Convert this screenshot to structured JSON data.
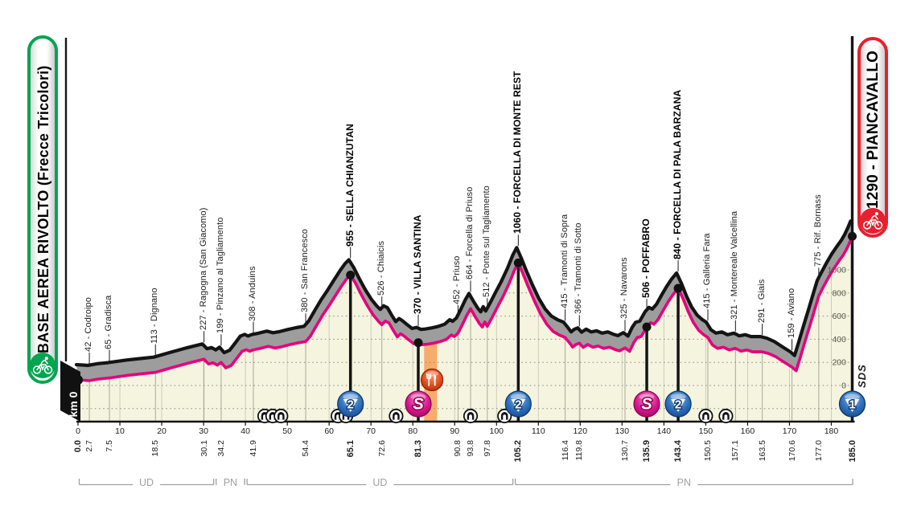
{
  "start": {
    "label": "BASE AEREA RIVOLTO (Frecce Tricolori)",
    "km0_label": "km 0"
  },
  "finish": {
    "label": "1290 - PIANCAVALLO"
  },
  "signature": "SDS",
  "colors": {
    "pink": "#e5007d",
    "line": "#141414",
    "shadow": "#9d9d9d",
    "area_fill": "#f4f4df",
    "feed_band": "#f6a55e",
    "green": "#00a550",
    "red": "#e6202e",
    "blue_cat": "#1f5fae",
    "magenta_sprint": "#d4007f",
    "orange_feed": "#e24f1e",
    "bracket": "#a0a0a0"
  },
  "chart_data": {
    "type": "area",
    "title": "Stage elevation profile",
    "x_unit": "km",
    "y_unit": "m",
    "xlim": [
      0,
      185
    ],
    "ylim": [
      -250,
      1350
    ],
    "axis": {
      "x_ticks": [
        0,
        10,
        20,
        30,
        40,
        50,
        60,
        70,
        80,
        90,
        100,
        110,
        120,
        130,
        140,
        150,
        160,
        170,
        180
      ],
      "y_tick_labels": [
        0,
        200,
        400,
        600,
        800,
        1000
      ],
      "y_gridlines": [
        -200,
        0,
        200,
        400,
        600,
        800,
        1000
      ]
    },
    "waypoints": [
      {
        "km": 2.7,
        "elev": 42,
        "label": "42 - Codroipo"
      },
      {
        "km": 7.5,
        "elev": 65,
        "label": "65 - Gradisca"
      },
      {
        "km": 18.5,
        "elev": 113,
        "label": "113 - Dignano"
      },
      {
        "km": 30.1,
        "elev": 227,
        "label": "227 - Ragogna (San Giacomo)"
      },
      {
        "km": 34.2,
        "elev": 199,
        "label": "199 - Pinzano al Tagliamento"
      },
      {
        "km": 41.9,
        "elev": 308,
        "label": "308 - Anduins"
      },
      {
        "km": 54.4,
        "elev": 380,
        "label": "380 - San Francesco"
      },
      {
        "km": 65.1,
        "elev": 955,
        "label": "955 - SELLA CHIANZUTAN",
        "bold": true,
        "marker": "cat2"
      },
      {
        "km": 72.6,
        "elev": 526,
        "label": "526 - Chiaicis"
      },
      {
        "km": 81.3,
        "elev": 370,
        "label": "370 - VILLA SANTINA",
        "bold": true,
        "marker": "sprint"
      },
      {
        "km": 90.8,
        "elev": 452,
        "label": "452 - Priuso"
      },
      {
        "km": 93.8,
        "elev": 664,
        "label": "664 - Forcella di Priuso"
      },
      {
        "km": 97.8,
        "elev": 512,
        "label": "512 - Ponte sul Tagliamento"
      },
      {
        "km": 105.2,
        "elev": 1060,
        "label": "1060 - FORCELLA DI MONTE REST",
        "bold": true,
        "marker": "cat2"
      },
      {
        "km": 116.4,
        "elev": 415,
        "label": "415 - Tramonti di Sopra"
      },
      {
        "km": 119.8,
        "elev": 366,
        "label": "366 - Tramonti di Sotto"
      },
      {
        "km": 130.7,
        "elev": 325,
        "label": "325 - Navarons"
      },
      {
        "km": 135.9,
        "elev": 506,
        "label": "506 - POFFABRO",
        "bold": true,
        "marker": "sprint"
      },
      {
        "km": 143.4,
        "elev": 840,
        "label": "840 - FORCELLA DI PALA BARZANA",
        "bold": true,
        "marker": "cat2"
      },
      {
        "km": 150.5,
        "elev": 415,
        "label": "415 - Galleria Fara"
      },
      {
        "km": 157.1,
        "elev": 321,
        "label": "321 - Montereale Valcellina"
      },
      {
        "km": 163.5,
        "elev": 291,
        "label": "291 - Giais"
      },
      {
        "km": 170.6,
        "elev": 159,
        "label": "159 - Aviano"
      },
      {
        "km": 177.0,
        "elev": 775,
        "label": "775 - Rif. Bornass"
      },
      {
        "km": 185.0,
        "elev": 1290,
        "label": "",
        "bold": true,
        "marker": "cat1",
        "no_callout": true
      }
    ],
    "km_labels": [
      {
        "v": "0.0",
        "bold": true
      },
      {
        "v": "2.7"
      },
      {
        "v": "7.5"
      },
      {
        "v": "18.5"
      },
      {
        "v": "30.1"
      },
      {
        "v": "34.2"
      },
      {
        "v": "41.9"
      },
      {
        "v": "54.4"
      },
      {
        "v": "65.1",
        "bold": true
      },
      {
        "v": "72.6"
      },
      {
        "v": "81.3",
        "bold": true
      },
      {
        "v": "90.8"
      },
      {
        "v": "93.8"
      },
      {
        "v": "97.8"
      },
      {
        "v": "105.2",
        "bold": true
      },
      {
        "v": "116.4"
      },
      {
        "v": "119.8"
      },
      {
        "v": "130.7"
      },
      {
        "v": "135.9",
        "bold": true
      },
      {
        "v": "143.4",
        "bold": true
      },
      {
        "v": "150.5"
      },
      {
        "v": "157.1"
      },
      {
        "v": "163.5"
      },
      {
        "v": "170.6"
      },
      {
        "v": "177.0"
      },
      {
        "v": "185.0",
        "bold": true
      }
    ],
    "provinces": [
      {
        "label": "UD",
        "from_km": 0,
        "to_km": 32.7
      },
      {
        "label": "PN",
        "from_km": 32.7,
        "to_km": 40.1
      },
      {
        "label": "UD",
        "from_km": 40.1,
        "to_km": 104.2
      },
      {
        "label": "PN",
        "from_km": 104.2,
        "to_km": 185.4
      }
    ],
    "tunnels_km": [
      44.6,
      46.5,
      48.5,
      62.1,
      64.0,
      76.0,
      93.8,
      101.9,
      150.0,
      154.8
    ],
    "feed_zone": {
      "from_km": 82.7,
      "to_km": 85.8,
      "icon_km": 84.6
    },
    "profile": [
      [
        0,
        48
      ],
      [
        1.4,
        45
      ],
      [
        2.7,
        42
      ],
      [
        5,
        56
      ],
      [
        7.5,
        65
      ],
      [
        12,
        88
      ],
      [
        15,
        100
      ],
      [
        18.5,
        113
      ],
      [
        22,
        150
      ],
      [
        26,
        190
      ],
      [
        30.1,
        227
      ],
      [
        31.2,
        186
      ],
      [
        32.3,
        196
      ],
      [
        33.3,
        176
      ],
      [
        34.2,
        199
      ],
      [
        35.3,
        152
      ],
      [
        36.6,
        172
      ],
      [
        38,
        238
      ],
      [
        39.2,
        296
      ],
      [
        40.2,
        310
      ],
      [
        41,
        296
      ],
      [
        41.9,
        308
      ],
      [
        43.5,
        320
      ],
      [
        45.5,
        338
      ],
      [
        47,
        324
      ],
      [
        48.5,
        333
      ],
      [
        50.5,
        352
      ],
      [
        52.5,
        368
      ],
      [
        54.4,
        380
      ],
      [
        55.5,
        425
      ],
      [
        57,
        520
      ],
      [
        58.5,
        612
      ],
      [
        60,
        692
      ],
      [
        61.5,
        778
      ],
      [
        63,
        862
      ],
      [
        64.2,
        922
      ],
      [
        65.1,
        955
      ],
      [
        66.3,
        886
      ],
      [
        67.5,
        798
      ],
      [
        69,
        698
      ],
      [
        70.5,
        612
      ],
      [
        71.8,
        554
      ],
      [
        72.6,
        526
      ],
      [
        73.4,
        557
      ],
      [
        74.3,
        541
      ],
      [
        75.3,
        478
      ],
      [
        76.3,
        420
      ],
      [
        77.1,
        447
      ],
      [
        77.9,
        428
      ],
      [
        79,
        395
      ],
      [
        80.2,
        361
      ],
      [
        81.3,
        370
      ],
      [
        82.3,
        353
      ],
      [
        83.5,
        357
      ],
      [
        85,
        367
      ],
      [
        86.5,
        379
      ],
      [
        88,
        398
      ],
      [
        89.2,
        437
      ],
      [
        89.9,
        423
      ],
      [
        90.8,
        452
      ],
      [
        91.8,
        523
      ],
      [
        92.9,
        607
      ],
      [
        93.8,
        664
      ],
      [
        94.9,
        595
      ],
      [
        95.9,
        537
      ],
      [
        96.6,
        505
      ],
      [
        97.2,
        549
      ],
      [
        97.8,
        512
      ],
      [
        98.8,
        578
      ],
      [
        100,
        664
      ],
      [
        101.5,
        766
      ],
      [
        103,
        882
      ],
      [
        104.3,
        998
      ],
      [
        105.2,
        1060
      ],
      [
        106.3,
        970
      ],
      [
        107.5,
        860
      ],
      [
        109,
        735
      ],
      [
        110.5,
        620
      ],
      [
        112,
        530
      ],
      [
        113.5,
        468
      ],
      [
        115,
        436
      ],
      [
        116.4,
        415
      ],
      [
        117.4,
        371
      ],
      [
        118.2,
        331
      ],
      [
        119,
        355
      ],
      [
        119.8,
        366
      ],
      [
        120.7,
        329
      ],
      [
        121.8,
        355
      ],
      [
        123,
        331
      ],
      [
        124.3,
        341
      ],
      [
        125.6,
        321
      ],
      [
        127,
        331
      ],
      [
        128.3,
        311
      ],
      [
        129.4,
        299
      ],
      [
        130.7,
        325
      ],
      [
        131.8,
        295
      ],
      [
        132.8,
        371
      ],
      [
        133.6,
        414
      ],
      [
        134.6,
        424
      ],
      [
        135.9,
        506
      ],
      [
        136.8,
        543
      ],
      [
        137.6,
        529
      ],
      [
        138.6,
        570
      ],
      [
        139.8,
        647
      ],
      [
        141,
        723
      ],
      [
        142.2,
        787
      ],
      [
        143.4,
        840
      ],
      [
        144.6,
        748
      ],
      [
        145.8,
        638
      ],
      [
        147,
        547
      ],
      [
        148.3,
        477
      ],
      [
        149.5,
        439
      ],
      [
        150.5,
        415
      ],
      [
        151.6,
        351
      ],
      [
        152.8,
        321
      ],
      [
        154.2,
        331
      ],
      [
        155.6,
        307
      ],
      [
        157.1,
        321
      ],
      [
        158.4,
        297
      ],
      [
        159.8,
        307
      ],
      [
        161.2,
        291
      ],
      [
        163.5,
        291
      ],
      [
        165,
        277
      ],
      [
        166.8,
        247
      ],
      [
        168.5,
        207
      ],
      [
        170.6,
        159
      ],
      [
        171.6,
        127
      ],
      [
        172.6,
        245
      ],
      [
        173.8,
        390
      ],
      [
        175,
        533
      ],
      [
        176,
        655
      ],
      [
        177,
        775
      ],
      [
        178,
        846
      ],
      [
        179.2,
        926
      ],
      [
        180.5,
        1006
      ],
      [
        181.8,
        1076
      ],
      [
        182.8,
        1126
      ],
      [
        183.6,
        1176
      ],
      [
        184.3,
        1230
      ],
      [
        185,
        1290
      ]
    ]
  }
}
